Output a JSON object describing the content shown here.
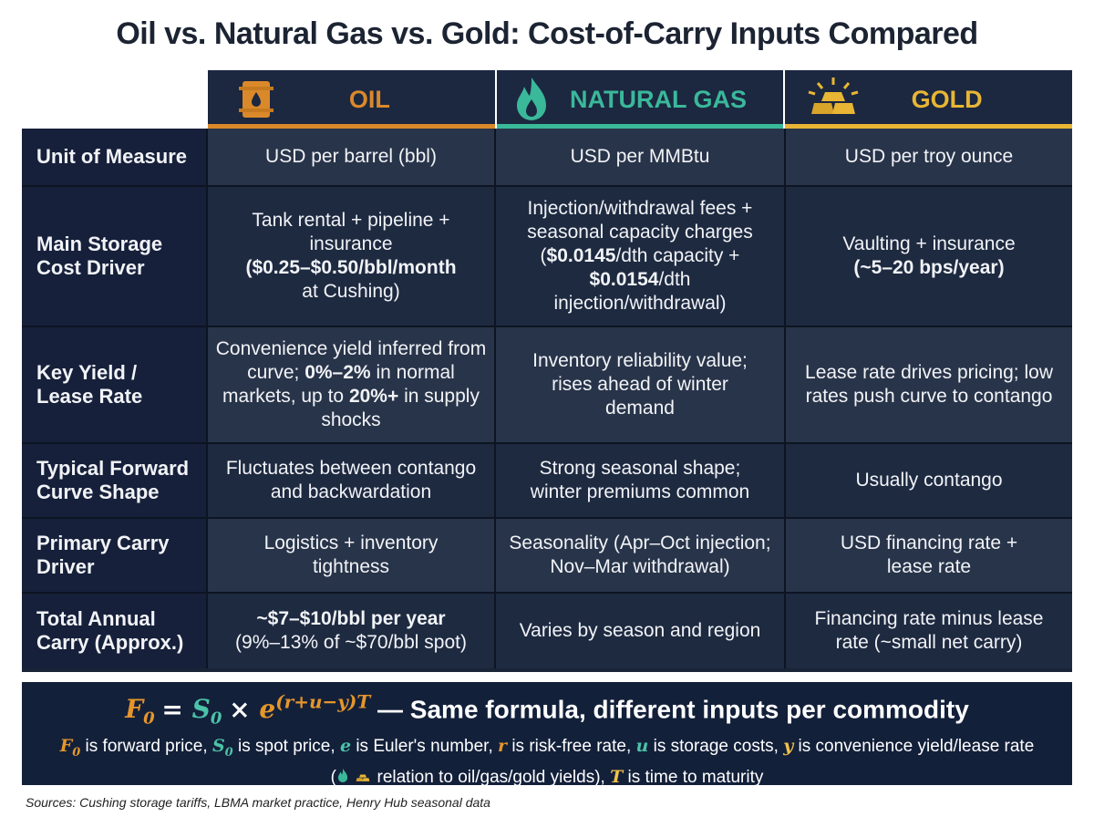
{
  "title": "Oil vs. Natural Gas vs. Gold: Cost-of-Carry Inputs Compared",
  "columns": [
    {
      "label": "OIL",
      "color": "#d9892a",
      "icon": "oil-barrel-icon"
    },
    {
      "label": "NATURAL GAS",
      "color": "#3ab89a",
      "icon": "flame-icon"
    },
    {
      "label": "GOLD",
      "color": "#e8b634",
      "icon": "gold-bars-icon"
    }
  ],
  "rows": [
    {
      "label": "Unit of Measure",
      "oil": "USD per barrel (bbl)",
      "gas": "USD per MMBtu",
      "gold": "USD per troy ounce"
    },
    {
      "label": "Main Storage Cost Driver",
      "oil_pre": "Tank rental + pipeline + insurance",
      "oil_bold": "($0.25–$0.50/bbl/month",
      "oil_post": "at Cushing)",
      "gas_pre": "Injection/withdrawal fees + seasonal capacity charges (",
      "gas_b1": "$0.0145",
      "gas_mid": "/dth capacity +",
      "gas_b2": "$0.0154",
      "gas_post": "/dth injection/withdrawal)",
      "gold_pre": "Vaulting + insurance",
      "gold_bold": "(~5–20 bps/year)"
    },
    {
      "label": "Key Yield / Lease Rate",
      "oil_pre": "Convenience yield inferred from curve;",
      "oil_b1": "0%–2%",
      "oil_mid": "in normal markets, up to",
      "oil_b2": "20%+",
      "oil_post": "in supply shocks",
      "gas": "Inventory reliability value; rises ahead of winter demand",
      "gold": "Lease rate drives pricing; low rates push curve to contango"
    },
    {
      "label": "Typical Forward Curve Shape",
      "oil": "Fluctuates between contango and backwardation",
      "gas": "Strong seasonal shape; winter premiums common",
      "gold": "Usually contango"
    },
    {
      "label": "Primary Carry Driver",
      "oil": "Logistics + inventory tightness",
      "gas": "Seasonality (Apr–Oct injection; Nov–Mar withdrawal)",
      "gold": "USD financing rate + lease rate"
    },
    {
      "label": "Total Annual Carry (Approx.)",
      "oil_bold": "~$7–$10/bbl per year",
      "oil_post": "(9%–13% of ~$70/bbl spot)",
      "gas": "Varies by season and region",
      "gold": "Financing rate minus lease rate (~small net carry)"
    }
  ],
  "formula": {
    "expression_suffix": "— Same formula, different inputs per commodity",
    "desc_1": "is forward price,",
    "desc_2": "is spot price,",
    "desc_3": "is Euler's number,",
    "desc_4": "is risk-free rate,",
    "desc_5": "is storage costs,",
    "desc_6": "is convenience yield/lease rate",
    "desc_7": "relation to oil/gas/gold yields),",
    "desc_8": "is time to maturity"
  },
  "sources": "Sources: Cushing storage tariffs, LBMA market practice, Henry Hub seasonal data"
}
